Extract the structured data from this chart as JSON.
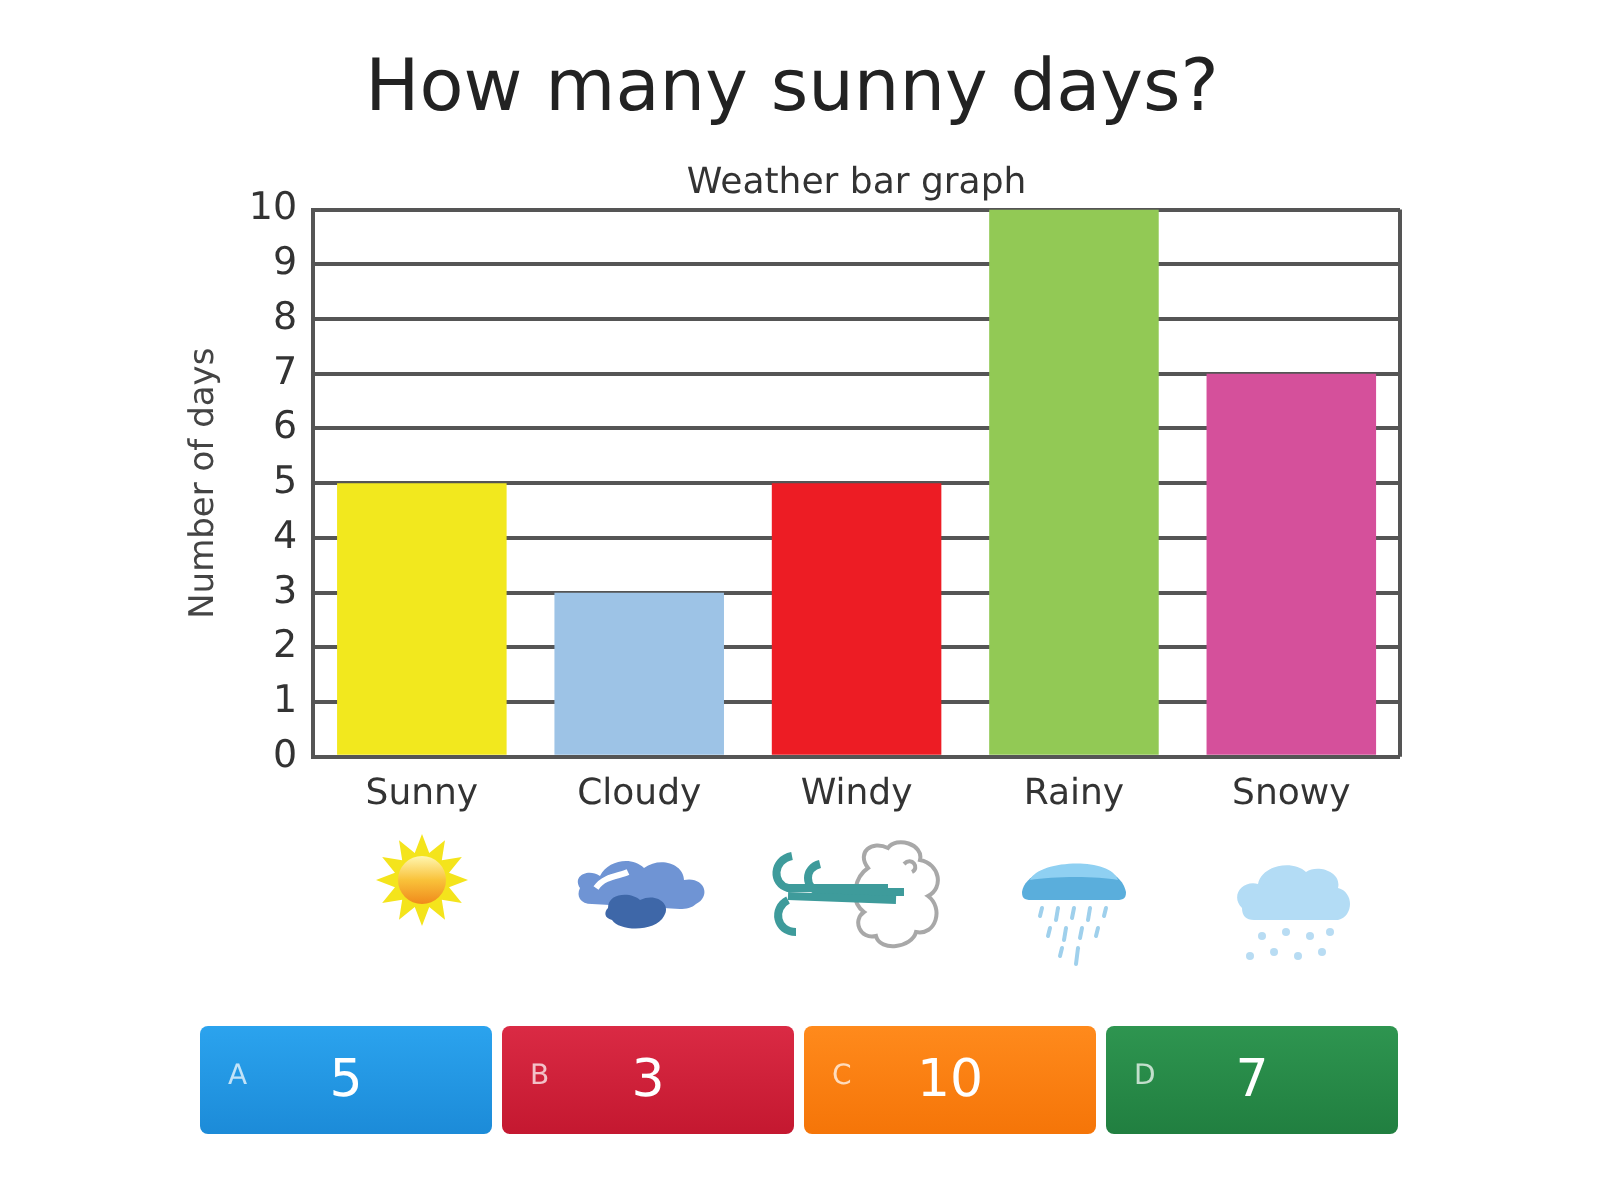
{
  "chart_data": {
    "type": "bar",
    "title": "How many sunny days?",
    "subtitle": "Weather bar graph",
    "ylabel": "Number of days",
    "categories": [
      "Sunny",
      "Cloudy",
      "Windy",
      "Rainy",
      "Snowy"
    ],
    "values": [
      5,
      3,
      5,
      10,
      7
    ],
    "colors": [
      "#f2e81e",
      "#9dc3e6",
      "#ed1c24",
      "#92c955",
      "#d5509b"
    ],
    "ylim": [
      0,
      10
    ],
    "yticks": [
      0,
      1,
      2,
      3,
      4,
      5,
      6,
      7,
      8,
      9,
      10
    ],
    "grid": "y",
    "annotations": [
      "A",
      "5",
      "B",
      "3",
      "C",
      "10",
      "D",
      "7"
    ]
  }
}
